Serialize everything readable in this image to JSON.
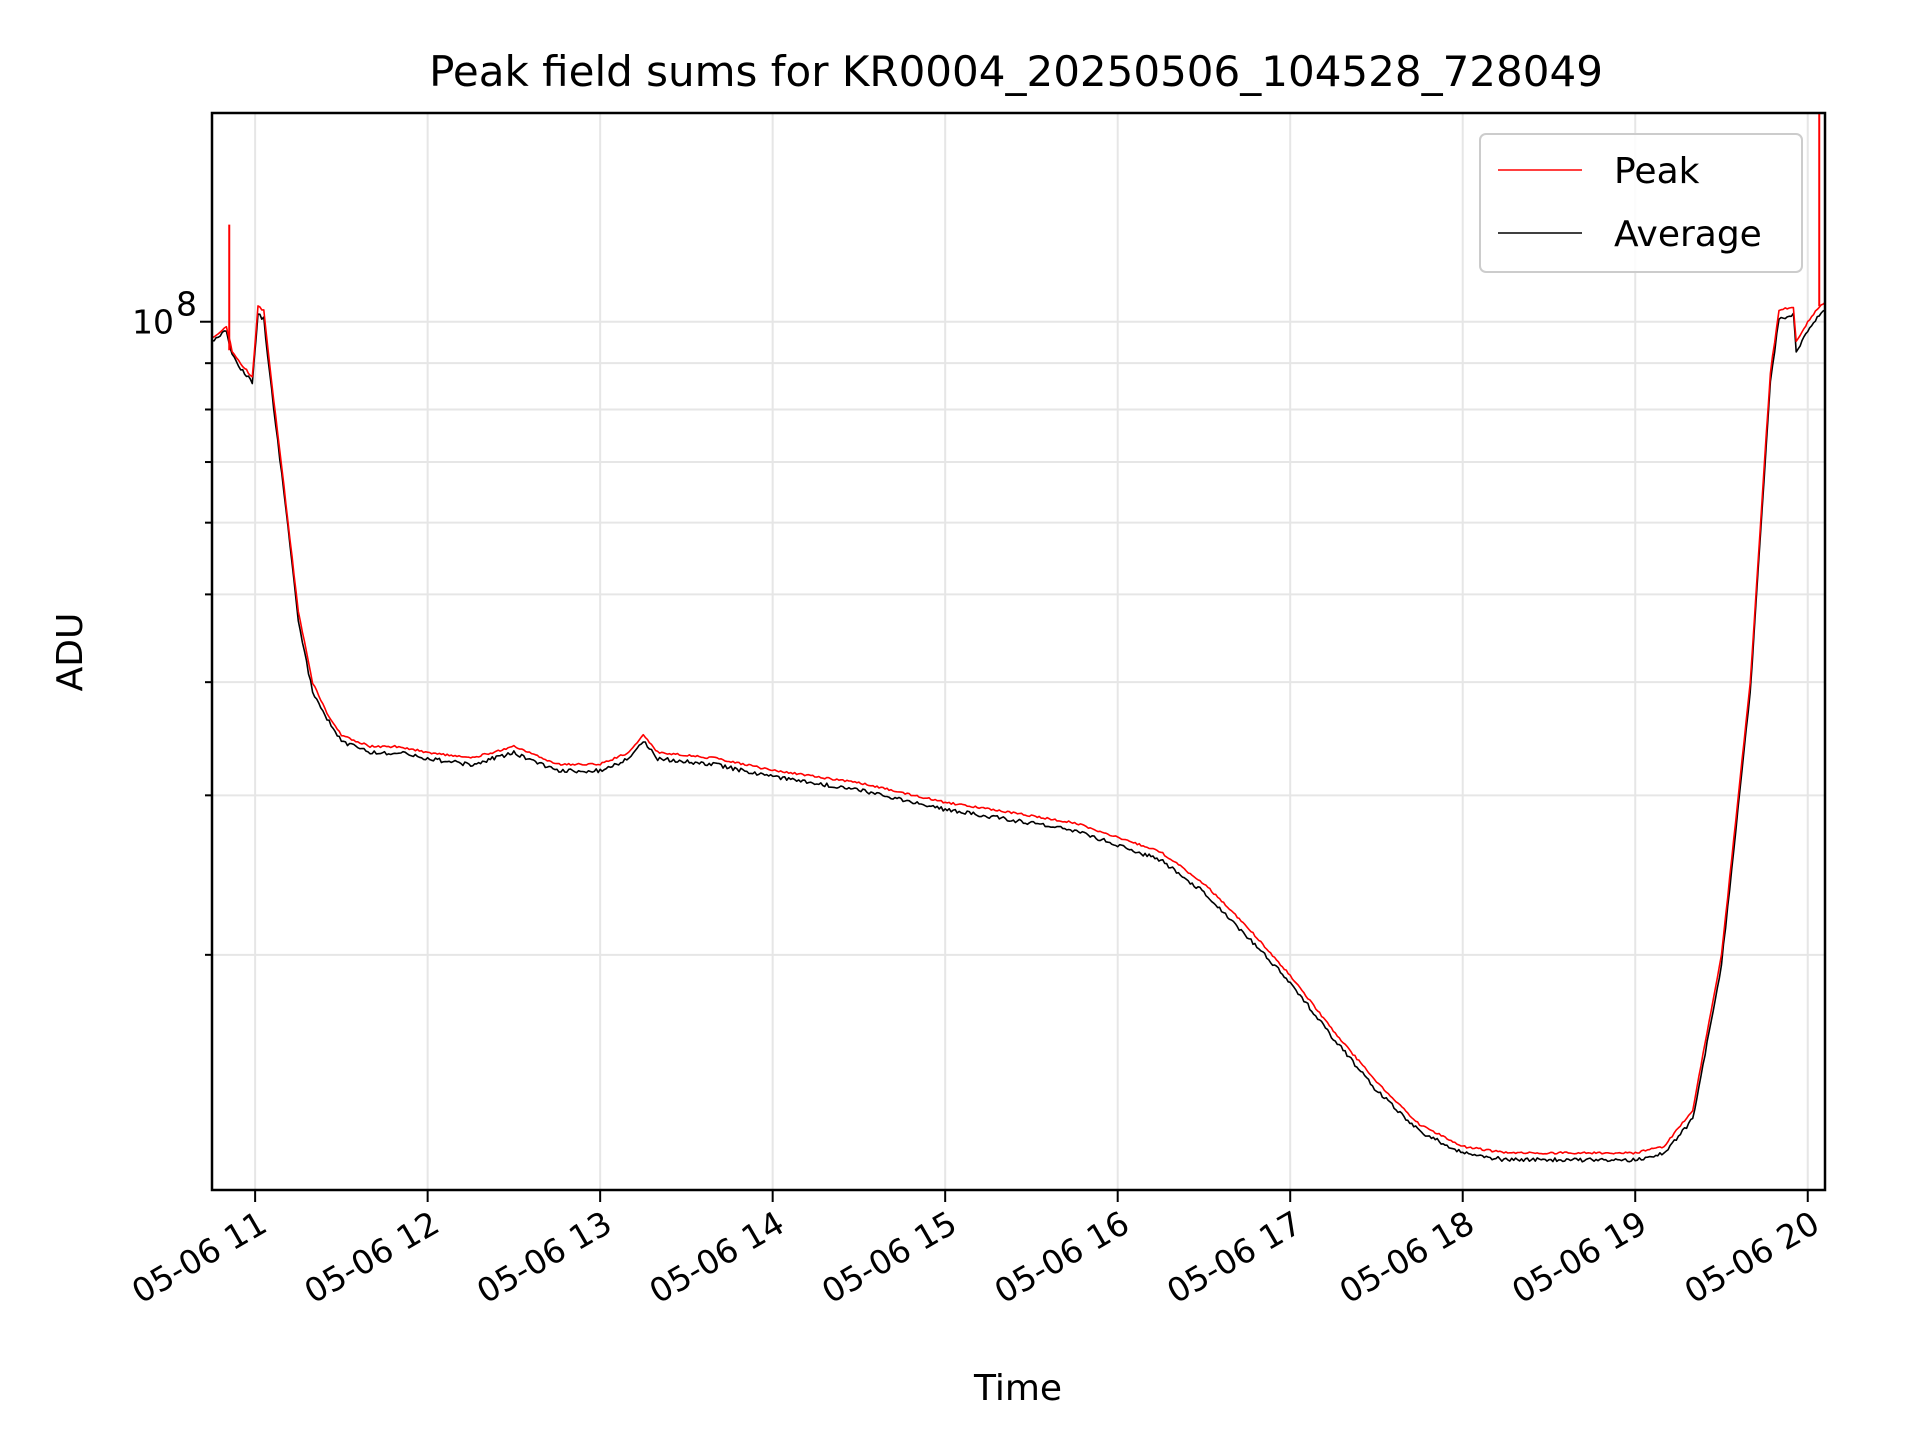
{
  "chart_data": {
    "type": "line",
    "title": "Peak field sums for KR0004_20250506_104528_728049",
    "xlabel": "Time",
    "ylabel": "ADU",
    "x_ticks": [
      "05-06 11",
      "05-06 12",
      "05-06 13",
      "05-06 14",
      "05-06 15",
      "05-06 16",
      "05-06 17",
      "05-06 18",
      "05-06 19",
      "05-06 20"
    ],
    "x_tick_times": [
      "2025-05-06 11:00",
      "2025-05-06 12:00",
      "2025-05-06 13:00",
      "2025-05-06 14:00",
      "2025-05-06 15:00",
      "2025-05-06 16:00",
      "2025-05-06 17:00",
      "2025-05-06 18:00",
      "2025-05-06 19:00",
      "2025-05-06 20:00"
    ],
    "xlim": [
      "2025-05-06 10:45",
      "2025-05-06 20:06"
    ],
    "y_scale": "log",
    "y_ticks": [
      {
        "label": "10",
        "exp": "8",
        "value": 100000000
      }
    ],
    "y_minor_ticks": [
      20000000,
      30000000,
      40000000,
      50000000,
      60000000,
      70000000,
      80000000,
      90000000
    ],
    "ylim": [
      11000000,
      170000000
    ],
    "grid": true,
    "legend": {
      "position": "top-right"
    },
    "series": [
      {
        "name": "Peak",
        "color": "#ff0000",
        "x": [
          "2025-05-06 10:45",
          "2025-05-06 10:50",
          "2025-05-06 10:52",
          "2025-05-06 10:55",
          "2025-05-06 10:59",
          "2025-05-06 11:01",
          "2025-05-06 11:03",
          "2025-05-06 11:05",
          "2025-05-06 11:10",
          "2025-05-06 11:15",
          "2025-05-06 11:20",
          "2025-05-06 11:25",
          "2025-05-06 11:30",
          "2025-05-06 11:40",
          "2025-05-06 11:50",
          "2025-05-06 12:00",
          "2025-05-06 12:15",
          "2025-05-06 12:30",
          "2025-05-06 12:45",
          "2025-05-06 13:00",
          "2025-05-06 13:10",
          "2025-05-06 13:15",
          "2025-05-06 13:20",
          "2025-05-06 13:40",
          "2025-05-06 14:00",
          "2025-05-06 14:30",
          "2025-05-06 15:00",
          "2025-05-06 15:30",
          "2025-05-06 15:45",
          "2025-05-06 16:00",
          "2025-05-06 16:15",
          "2025-05-06 16:30",
          "2025-05-06 16:45",
          "2025-05-06 17:00",
          "2025-05-06 17:15",
          "2025-05-06 17:30",
          "2025-05-06 17:45",
          "2025-05-06 18:00",
          "2025-05-06 18:15",
          "2025-05-06 18:30",
          "2025-05-06 18:45",
          "2025-05-06 19:00",
          "2025-05-06 19:10",
          "2025-05-06 19:20",
          "2025-05-06 19:30",
          "2025-05-06 19:40",
          "2025-05-06 19:47",
          "2025-05-06 19:50",
          "2025-05-06 19:55",
          "2025-05-06 19:56",
          "2025-05-06 20:00",
          "2025-05-06 20:04",
          "2025-05-06 20:06"
        ],
        "values": [
          96000000,
          99000000,
          93000000,
          90000000,
          87000000,
          104000000,
          103000000,
          90000000,
          66000000,
          48000000,
          40000000,
          37000000,
          35000000,
          34000000,
          34000000,
          33500000,
          33000000,
          34000000,
          32500000,
          32500000,
          33500000,
          35000000,
          33500000,
          33000000,
          32000000,
          31000000,
          29500000,
          28500000,
          28000000,
          27000000,
          26000000,
          24000000,
          21500000,
          19000000,
          16500000,
          14500000,
          13000000,
          12300000,
          12100000,
          12100000,
          12100000,
          12100000,
          12300000,
          13500000,
          20000000,
          40000000,
          88000000,
          103000000,
          104000000,
          95000000,
          100000000,
          104000000,
          105000000
        ],
        "spikes": [
          {
            "x": "2025-05-06 10:51",
            "value": 128000000
          },
          {
            "x": "2025-05-06 20:04",
            "value": 170000000
          }
        ]
      },
      {
        "name": "Average",
        "color": "#000000",
        "x": [
          "2025-05-06 10:45",
          "2025-05-06 10:50",
          "2025-05-06 10:52",
          "2025-05-06 10:55",
          "2025-05-06 10:59",
          "2025-05-06 11:01",
          "2025-05-06 11:03",
          "2025-05-06 11:05",
          "2025-05-06 11:10",
          "2025-05-06 11:15",
          "2025-05-06 11:20",
          "2025-05-06 11:25",
          "2025-05-06 11:30",
          "2025-05-06 11:40",
          "2025-05-06 11:50",
          "2025-05-06 12:00",
          "2025-05-06 12:15",
          "2025-05-06 12:30",
          "2025-05-06 12:45",
          "2025-05-06 13:00",
          "2025-05-06 13:10",
          "2025-05-06 13:15",
          "2025-05-06 13:20",
          "2025-05-06 13:40",
          "2025-05-06 14:00",
          "2025-05-06 14:30",
          "2025-05-06 15:00",
          "2025-05-06 15:30",
          "2025-05-06 15:45",
          "2025-05-06 16:00",
          "2025-05-06 16:15",
          "2025-05-06 16:30",
          "2025-05-06 16:45",
          "2025-05-06 17:00",
          "2025-05-06 17:15",
          "2025-05-06 17:30",
          "2025-05-06 17:45",
          "2025-05-06 18:00",
          "2025-05-06 18:15",
          "2025-05-06 18:30",
          "2025-05-06 18:45",
          "2025-05-06 19:00",
          "2025-05-06 19:10",
          "2025-05-06 19:20",
          "2025-05-06 19:30",
          "2025-05-06 19:40",
          "2025-05-06 19:47",
          "2025-05-06 19:50",
          "2025-05-06 19:55",
          "2025-05-06 19:56",
          "2025-05-06 20:00",
          "2025-05-06 20:04",
          "2025-05-06 20:06"
        ],
        "values": [
          95000000,
          98000000,
          92000000,
          89000000,
          86000000,
          102000000,
          101000000,
          88000000,
          65000000,
          47000000,
          39000000,
          36500000,
          34500000,
          33500000,
          33500000,
          33000000,
          32500000,
          33500000,
          32000000,
          32000000,
          33000000,
          34500000,
          33000000,
          32500000,
          31500000,
          30500000,
          29000000,
          28000000,
          27500000,
          26500000,
          25500000,
          23500000,
          21000000,
          18700000,
          16200000,
          14200000,
          12800000,
          12100000,
          11900000,
          11900000,
          11900000,
          11900000,
          12100000,
          13200000,
          19500000,
          39000000,
          86000000,
          101000000,
          102000000,
          93000000,
          98000000,
          102000000,
          103000000
        ],
        "spikes": []
      }
    ]
  }
}
